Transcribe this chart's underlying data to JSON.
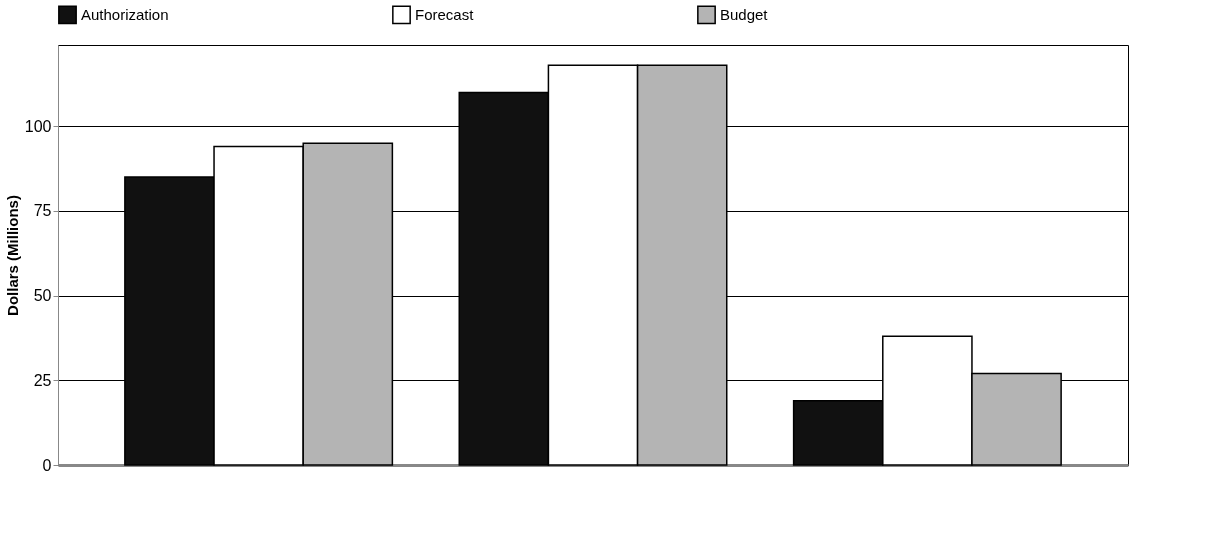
{
  "chart_data": {
    "type": "bar",
    "ylabel": "Dollars (Millions)",
    "categories": [
      null,
      null,
      null
    ],
    "series": [
      {
        "name": "Authorization",
        "color": "#111111",
        "values": [
          85,
          110,
          19
        ]
      },
      {
        "name": "Forecast",
        "color": "#ffffff",
        "values": [
          94,
          118,
          38
        ]
      },
      {
        "name": "Budget",
        "color": "#b4b4b4",
        "values": [
          95,
          118,
          27
        ]
      }
    ],
    "ylim": [
      0,
      124
    ],
    "yticks": [
      0,
      25,
      50,
      75,
      100
    ],
    "grid": "y",
    "legend": "top"
  }
}
